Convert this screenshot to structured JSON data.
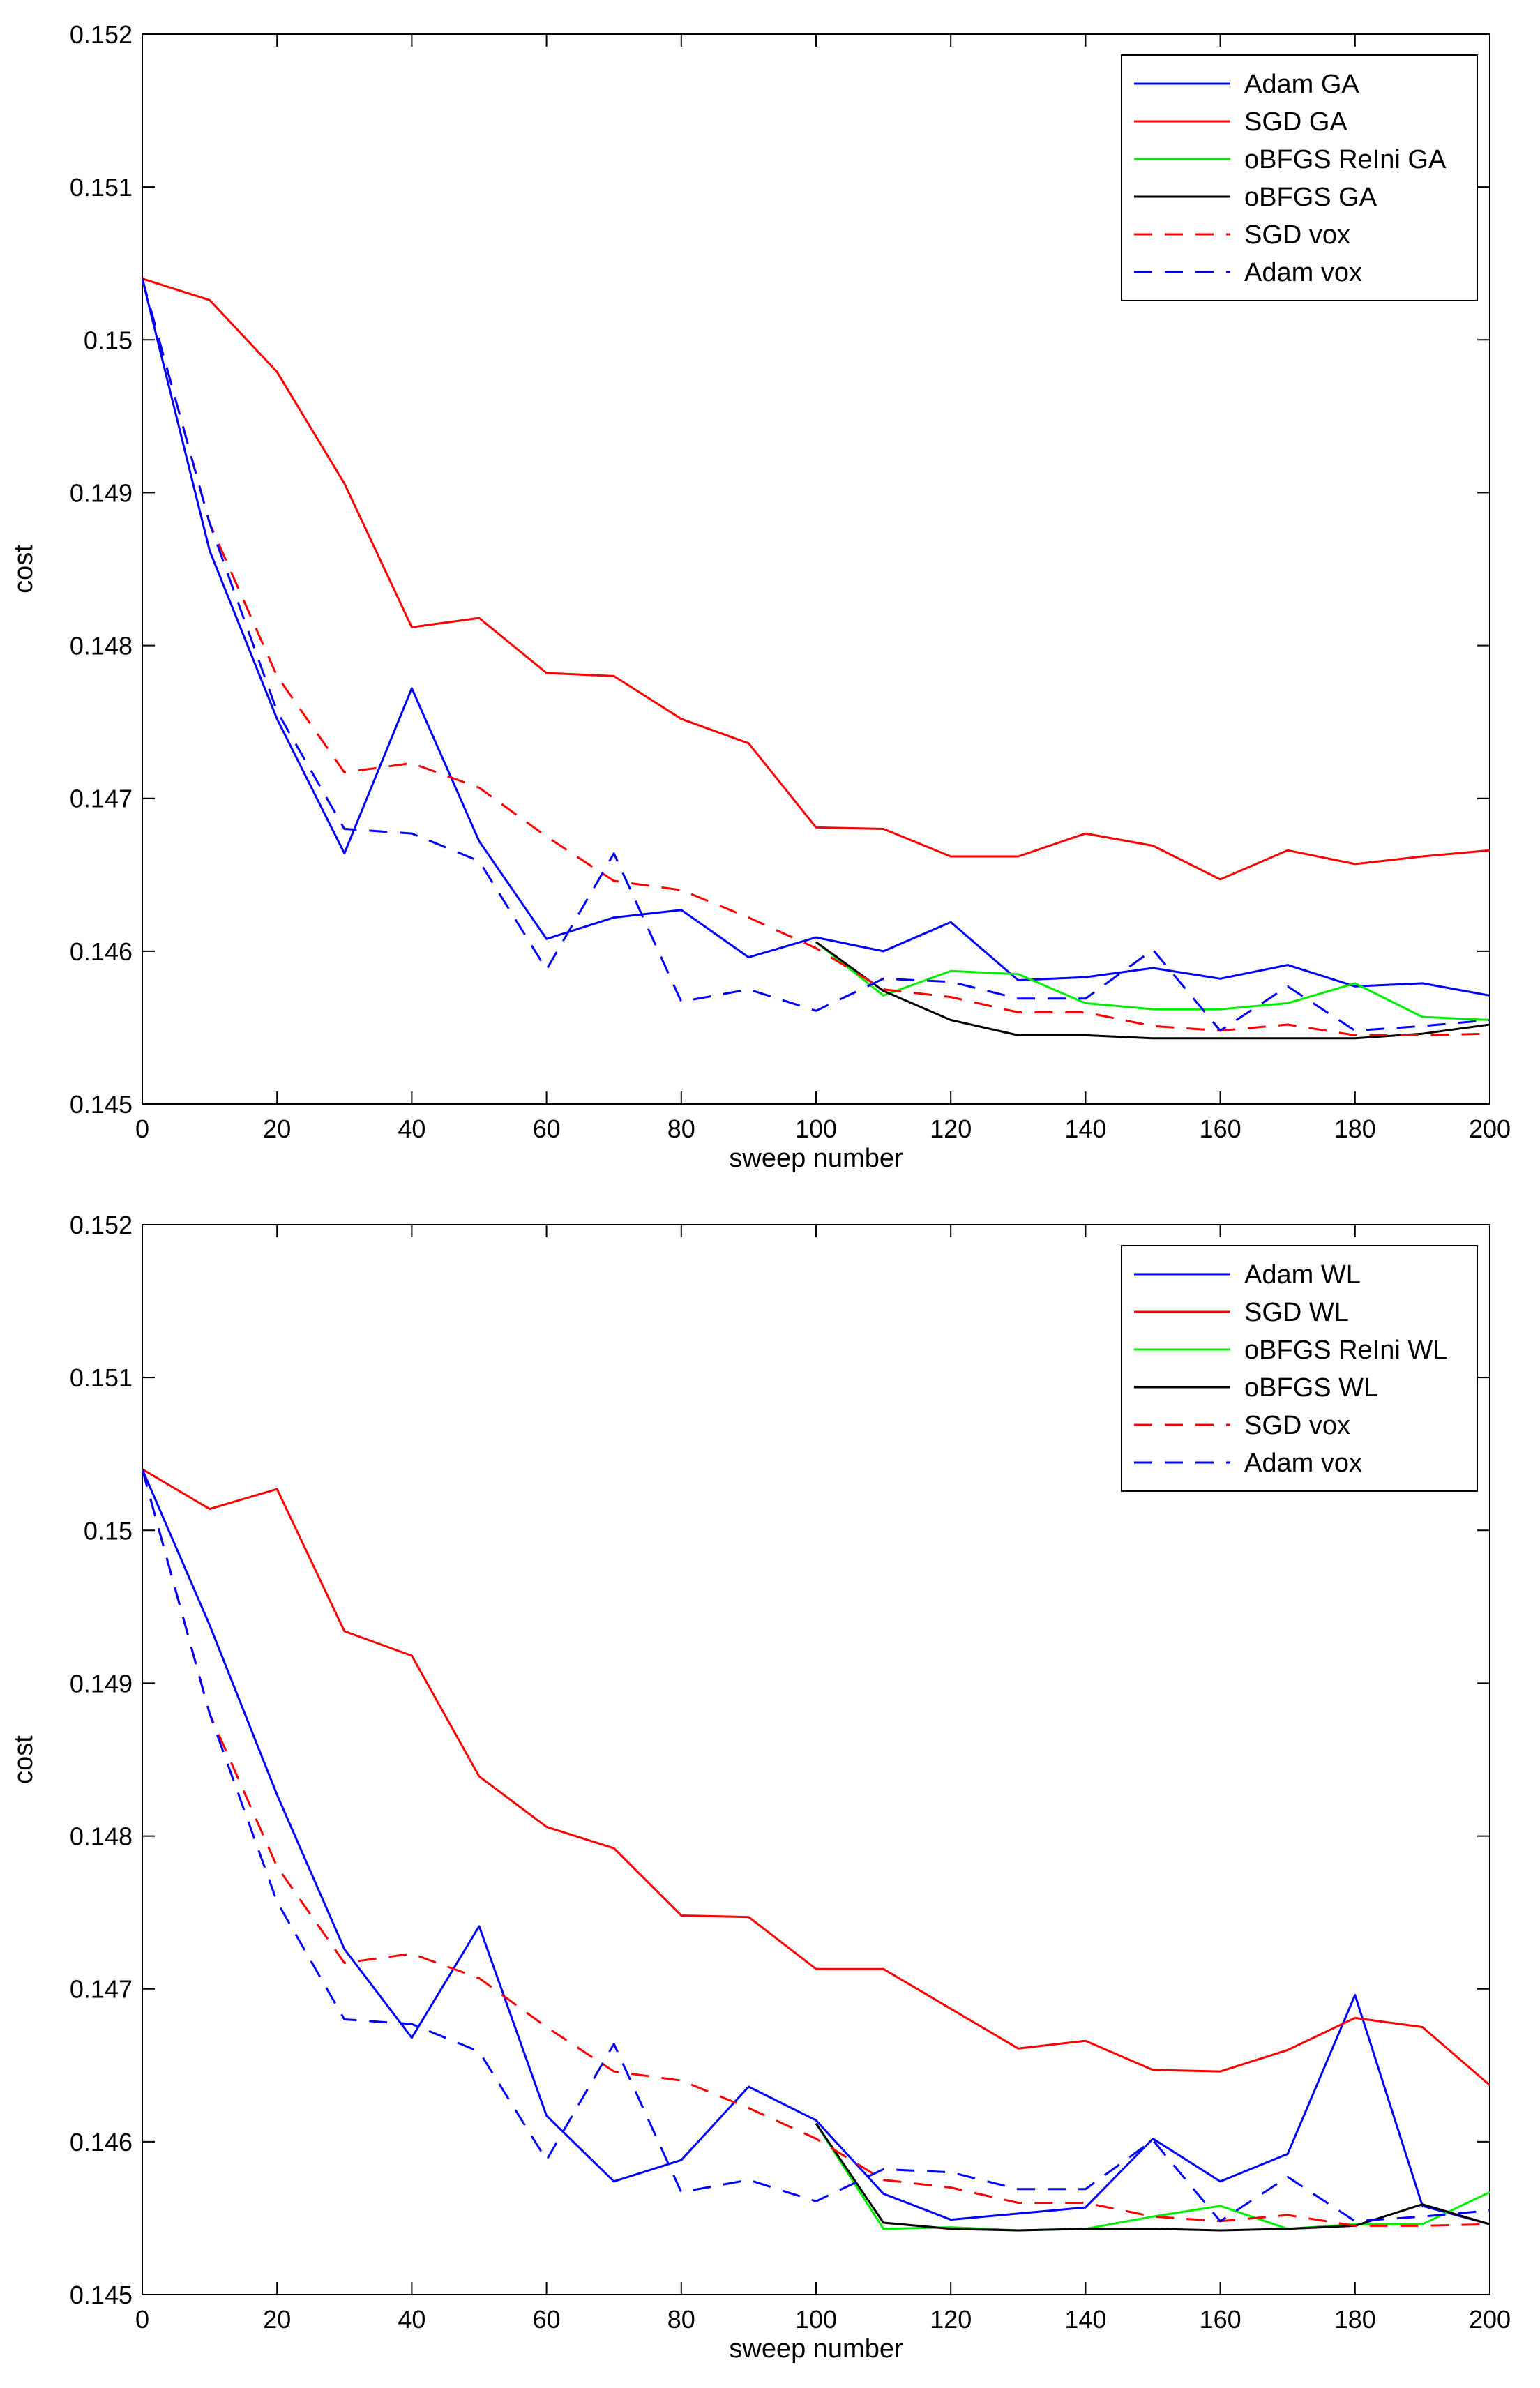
{
  "chart_data": [
    {
      "type": "line",
      "xlabel": "sweep number",
      "ylabel": "cost",
      "xlim": [
        0,
        200
      ],
      "ylim": [
        0.145,
        0.152
      ],
      "xticks": [
        0,
        20,
        40,
        60,
        80,
        100,
        120,
        140,
        160,
        180,
        200
      ],
      "yticks": [
        0.145,
        0.146,
        0.147,
        0.148,
        0.149,
        0.15,
        0.151,
        0.152
      ],
      "ytick_labels": [
        "0.145",
        "0.146",
        "0.147",
        "0.148",
        "0.149",
        "0.15",
        "0.151",
        "0.152"
      ],
      "legend_position": "top-right",
      "series": [
        {
          "name": "Adam GA",
          "color": "#0000ff",
          "style": "solid",
          "x": [
            0,
            10,
            20,
            30,
            40,
            50,
            60,
            70,
            80,
            90,
            100,
            110,
            120,
            130,
            140,
            150,
            160,
            170,
            180,
            190,
            200
          ],
          "values": [
            0.1504,
            0.14862,
            0.14752,
            0.14664,
            0.14772,
            0.14672,
            0.14608,
            0.14622,
            0.14627,
            0.14596,
            0.14609,
            0.146,
            0.14619,
            0.14581,
            0.14583,
            0.14589,
            0.14582,
            0.14591,
            0.14577,
            0.14579,
            0.14571
          ]
        },
        {
          "name": "SGD GA",
          "color": "#ff0000",
          "style": "solid",
          "x": [
            0,
            10,
            20,
            30,
            40,
            50,
            60,
            70,
            80,
            90,
            100,
            110,
            120,
            130,
            140,
            150,
            160,
            170,
            180,
            190,
            200
          ],
          "values": [
            0.1504,
            0.15026,
            0.14979,
            0.14906,
            0.14812,
            0.14818,
            0.14782,
            0.1478,
            0.14752,
            0.14736,
            0.14681,
            0.1468,
            0.14662,
            0.14662,
            0.14677,
            0.14669,
            0.14647,
            0.14666,
            0.14657,
            0.14662,
            0.14666
          ]
        },
        {
          "name": "oBFGS ReIni GA",
          "color": "#00ee00",
          "style": "solid",
          "x": [
            100,
            110,
            120,
            130,
            140,
            150,
            160,
            170,
            180,
            190,
            200
          ],
          "values": [
            0.14606,
            0.14571,
            0.14587,
            0.14585,
            0.14566,
            0.14562,
            0.14562,
            0.14566,
            0.14579,
            0.14557,
            0.14555
          ]
        },
        {
          "name": "oBFGS GA",
          "color": "#000000",
          "style": "solid",
          "x": [
            100,
            110,
            120,
            130,
            140,
            150,
            160,
            170,
            180,
            190,
            200
          ],
          "values": [
            0.14606,
            0.14574,
            0.14555,
            0.14545,
            0.14545,
            0.14543,
            0.14543,
            0.14543,
            0.14543,
            0.14546,
            0.14552
          ]
        },
        {
          "name": "SGD vox",
          "color": "#ff0000",
          "style": "dashed",
          "x": [
            0,
            10,
            20,
            30,
            40,
            50,
            60,
            70,
            80,
            90,
            100,
            110,
            120,
            130,
            140,
            150,
            160,
            170,
            180,
            190,
            200
          ],
          "values": [
            0.1504,
            0.1488,
            0.1478,
            0.14717,
            0.14723,
            0.14707,
            0.14675,
            0.14646,
            0.1464,
            0.14622,
            0.14602,
            0.14575,
            0.1457,
            0.1456,
            0.1456,
            0.14551,
            0.14548,
            0.14552,
            0.14545,
            0.14545,
            0.14546
          ]
        },
        {
          "name": "Adam vox",
          "color": "#0000ff",
          "style": "dashed",
          "x": [
            0,
            10,
            20,
            30,
            40,
            50,
            60,
            70,
            80,
            90,
            100,
            110,
            120,
            130,
            140,
            150,
            160,
            170,
            180,
            190,
            200
          ],
          "values": [
            0.1504,
            0.1488,
            0.14757,
            0.1468,
            0.14677,
            0.14659,
            0.14588,
            0.14664,
            0.14567,
            0.14575,
            0.14561,
            0.14582,
            0.1458,
            0.14569,
            0.14569,
            0.14601,
            0.14548,
            0.14577,
            0.14548,
            0.14551,
            0.14555
          ]
        }
      ]
    },
    {
      "type": "line",
      "xlabel": "sweep number",
      "ylabel": "cost",
      "xlim": [
        0,
        200
      ],
      "ylim": [
        0.145,
        0.152
      ],
      "xticks": [
        0,
        20,
        40,
        60,
        80,
        100,
        120,
        140,
        160,
        180,
        200
      ],
      "yticks": [
        0.145,
        0.146,
        0.147,
        0.148,
        0.149,
        0.15,
        0.151,
        0.152
      ],
      "ytick_labels": [
        "0.145",
        "0.146",
        "0.147",
        "0.148",
        "0.149",
        "0.15",
        "0.151",
        "0.152"
      ],
      "legend_position": "top-right",
      "series": [
        {
          "name": "Adam WL",
          "color": "#0000ff",
          "style": "solid",
          "x": [
            0,
            10,
            20,
            30,
            40,
            50,
            60,
            70,
            80,
            90,
            100,
            110,
            120,
            130,
            140,
            150,
            160,
            170,
            180,
            190,
            200
          ],
          "values": [
            0.1504,
            0.14938,
            0.14827,
            0.14726,
            0.14668,
            0.14741,
            0.14617,
            0.14574,
            0.14588,
            0.14636,
            0.14614,
            0.14566,
            0.14549,
            0.14553,
            0.14557,
            0.14602,
            0.14574,
            0.14592,
            0.14696,
            0.14558,
            0.14546
          ]
        },
        {
          "name": "SGD WL",
          "color": "#ff0000",
          "style": "solid",
          "x": [
            0,
            10,
            20,
            30,
            40,
            50,
            60,
            70,
            80,
            90,
            100,
            110,
            120,
            130,
            140,
            150,
            160,
            170,
            180,
            190,
            200
          ],
          "values": [
            0.1504,
            0.15014,
            0.15027,
            0.14934,
            0.14918,
            0.14839,
            0.14806,
            0.14792,
            0.14748,
            0.14747,
            0.14713,
            0.14713,
            0.14687,
            0.14661,
            0.14666,
            0.14647,
            0.14646,
            0.1466,
            0.14681,
            0.14675,
            0.14637
          ]
        },
        {
          "name": "oBFGS ReIni WL",
          "color": "#00ee00",
          "style": "solid",
          "x": [
            100,
            110,
            120,
            130,
            140,
            150,
            160,
            170,
            180,
            190,
            200
          ],
          "values": [
            0.14612,
            0.14543,
            0.14544,
            0.14542,
            0.14543,
            0.14551,
            0.14558,
            0.14543,
            0.14546,
            0.14546,
            0.14567
          ]
        },
        {
          "name": "oBFGS WL",
          "color": "#000000",
          "style": "solid",
          "x": [
            100,
            110,
            120,
            130,
            140,
            150,
            160,
            170,
            180,
            190,
            200
          ],
          "values": [
            0.14612,
            0.14547,
            0.14543,
            0.14542,
            0.14543,
            0.14543,
            0.14542,
            0.14543,
            0.14545,
            0.14559,
            0.14546
          ]
        },
        {
          "name": "SGD vox",
          "color": "#ff0000",
          "style": "dashed",
          "x": [
            0,
            10,
            20,
            30,
            40,
            50,
            60,
            70,
            80,
            90,
            100,
            110,
            120,
            130,
            140,
            150,
            160,
            170,
            180,
            190,
            200
          ],
          "values": [
            0.1504,
            0.1488,
            0.1478,
            0.14717,
            0.14723,
            0.14707,
            0.14675,
            0.14646,
            0.1464,
            0.14622,
            0.14602,
            0.14575,
            0.1457,
            0.1456,
            0.1456,
            0.14551,
            0.14548,
            0.14552,
            0.14545,
            0.14545,
            0.14546
          ]
        },
        {
          "name": "Adam vox",
          "color": "#0000ff",
          "style": "dashed",
          "x": [
            0,
            10,
            20,
            30,
            40,
            50,
            60,
            70,
            80,
            90,
            100,
            110,
            120,
            130,
            140,
            150,
            160,
            170,
            180,
            190,
            200
          ],
          "values": [
            0.1504,
            0.1488,
            0.14757,
            0.1468,
            0.14677,
            0.14659,
            0.14588,
            0.14664,
            0.14567,
            0.14575,
            0.14561,
            0.14582,
            0.1458,
            0.14569,
            0.14569,
            0.14601,
            0.14548,
            0.14577,
            0.14548,
            0.14551,
            0.14555
          ]
        }
      ]
    }
  ]
}
